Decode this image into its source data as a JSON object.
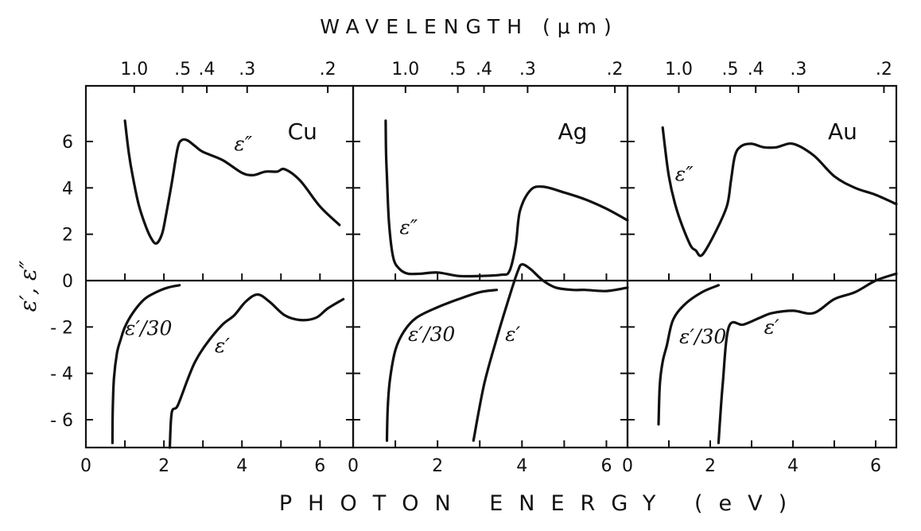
{
  "chart_data": {
    "type": "line",
    "title": "WAVELENGTH (μm)",
    "xlabel": "PHOTON ENERGY (eV)",
    "ylabel": "ε′, ε″",
    "ylim": [
      -7.2,
      8.4
    ],
    "yticks": [
      6,
      4,
      2,
      0,
      -2,
      -4,
      -6
    ],
    "ytick_labels": [
      "6",
      "4",
      "2",
      "0",
      "- 2",
      "- 4",
      "- 6"
    ],
    "grid": false,
    "panels": [
      {
        "name": "Cu",
        "xlim": [
          0,
          6.85
        ],
        "xticks": [
          0,
          2,
          4,
          6
        ],
        "xtick_labels": [
          "0",
          "2",
          "4",
          "6"
        ],
        "wavelength_ticks": [
          1.0,
          0.5,
          0.4,
          0.3,
          0.2
        ],
        "wavelength_labels": [
          "1.0",
          ".5",
          ".4",
          ".3",
          ".2"
        ],
        "series": [
          {
            "name": "ε″",
            "label": "ε″",
            "label_at": [
              3.8,
              5.6
            ],
            "x": [
              1.0,
              1.1,
              1.2,
              1.35,
              1.5,
              1.65,
              1.8,
              1.95,
              2.05,
              2.2,
              2.35,
              2.45,
              2.6,
              2.8,
              3.0,
              3.5,
              4.0,
              4.3,
              4.6,
              4.9,
              5.1,
              5.5,
              6.0,
              6.5
            ],
            "y": [
              6.9,
              5.5,
              4.5,
              3.3,
              2.5,
              1.9,
              1.6,
              2.0,
              2.8,
              4.2,
              5.7,
              6.05,
              6.05,
              5.8,
              5.55,
              5.2,
              4.65,
              4.55,
              4.7,
              4.7,
              4.8,
              4.3,
              3.2,
              2.4
            ]
          },
          {
            "name": "ε′/30",
            "label": "ε′/30",
            "label_at": [
              1.0,
              -2.35
            ],
            "x": [
              0.68,
              0.69,
              0.72,
              0.8,
              0.9,
              1.0,
              1.2,
              1.5,
              1.8,
              2.1,
              2.4
            ],
            "y": [
              -7.0,
              -5.5,
              -4.2,
              -3.1,
              -2.5,
              -2.0,
              -1.4,
              -0.8,
              -0.5,
              -0.3,
              -0.2
            ]
          },
          {
            "name": "ε′",
            "label": "ε′",
            "label_at": [
              3.3,
              -3.1
            ],
            "x": [
              2.15,
              2.2,
              2.35,
              2.6,
              2.8,
              3.1,
              3.5,
              3.8,
              4.1,
              4.4,
              4.7,
              5.1,
              5.5,
              5.9,
              6.2,
              6.6
            ],
            "y": [
              -7.2,
              -5.7,
              -5.4,
              -4.3,
              -3.5,
              -2.7,
              -1.9,
              -1.5,
              -0.9,
              -0.6,
              -0.9,
              -1.5,
              -1.7,
              -1.6,
              -1.2,
              -0.8
            ]
          }
        ]
      },
      {
        "name": "Ag",
        "xlim": [
          0,
          6.5
        ],
        "xticks": [
          0,
          2,
          4,
          6
        ],
        "xtick_labels": [
          "0",
          "2",
          "4",
          "6"
        ],
        "wavelength_ticks": [
          1.0,
          0.5,
          0.4,
          0.3,
          0.2
        ],
        "wavelength_labels": [
          "1.0",
          ".5",
          ".4",
          ".3",
          ".2"
        ],
        "series": [
          {
            "name": "ε″",
            "label": "ε″",
            "label_at": [
              1.1,
              2.0
            ],
            "x": [
              0.77,
              0.78,
              0.8,
              0.85,
              0.95,
              1.1,
              1.3,
              1.6,
              2.0,
              2.5,
              3.0,
              3.5,
              3.7,
              3.85,
              3.95,
              4.2,
              4.5,
              5.0,
              5.5,
              6.0,
              6.5
            ],
            "y": [
              6.9,
              5.5,
              4.5,
              2.5,
              1.0,
              0.5,
              0.3,
              0.3,
              0.35,
              0.2,
              0.2,
              0.25,
              0.4,
              1.5,
              3.0,
              3.9,
              4.05,
              3.8,
              3.5,
              3.1,
              2.6
            ]
          },
          {
            "name": "ε′/30",
            "label": "ε′/30",
            "label_at": [
              1.3,
              -2.6
            ],
            "x": [
              0.8,
              0.82,
              0.87,
              1.0,
              1.2,
              1.5,
              2.0,
              2.5,
              3.0,
              3.4
            ],
            "y": [
              -6.9,
              -5.5,
              -4.3,
              -3.0,
              -2.2,
              -1.6,
              -1.15,
              -0.8,
              -0.5,
              -0.4
            ]
          },
          {
            "name": "ε′",
            "label": "ε′",
            "label_at": [
              3.6,
              -2.6
            ],
            "x": [
              2.85,
              3.1,
              3.4,
              3.7,
              3.9,
              4.0,
              4.2,
              4.5,
              4.8,
              5.2,
              5.5,
              6.0,
              6.5
            ],
            "y": [
              -6.9,
              -4.5,
              -2.5,
              -0.7,
              0.4,
              0.7,
              0.5,
              0.0,
              -0.3,
              -0.4,
              -0.4,
              -0.45,
              -0.3
            ]
          }
        ]
      },
      {
        "name": "Au",
        "xlim": [
          0,
          6.5
        ],
        "xticks": [
          0,
          2,
          4,
          6
        ],
        "xtick_labels": [
          "0",
          "2",
          "4",
          "6"
        ],
        "wavelength_ticks": [
          1.0,
          0.5,
          0.4,
          0.3,
          0.2
        ],
        "wavelength_labels": [
          "1.0",
          ".5",
          ".4",
          ".3",
          ".2"
        ],
        "series": [
          {
            "name": "ε″",
            "label": "ε″",
            "label_at": [
              1.15,
              4.3
            ],
            "x": [
              0.85,
              1.0,
              1.2,
              1.5,
              1.65,
              1.8,
              2.1,
              2.4,
              2.5,
              2.6,
              2.75,
              3.0,
              3.3,
              3.6,
              4.0,
              4.5,
              5.0,
              5.5,
              6.0,
              6.5
            ],
            "y": [
              6.6,
              4.5,
              3.0,
              1.6,
              1.3,
              1.1,
              2.0,
              3.2,
              4.3,
              5.4,
              5.8,
              5.9,
              5.75,
              5.75,
              5.9,
              5.4,
              4.5,
              4.0,
              3.7,
              3.3
            ]
          },
          {
            "name": "ε′/30",
            "label": "ε′/30",
            "label_at": [
              1.25,
              -2.7
            ],
            "x": [
              0.75,
              0.78,
              0.85,
              0.95,
              1.1,
              1.4,
              1.8,
              2.2
            ],
            "y": [
              -6.2,
              -4.5,
              -3.5,
              -2.8,
              -1.7,
              -1.0,
              -0.5,
              -0.2
            ]
          },
          {
            "name": "ε′",
            "label": "ε′",
            "label_at": [
              3.3,
              -2.3
            ],
            "x": [
              2.2,
              2.3,
              2.45,
              2.8,
              3.2,
              3.5,
              4.0,
              4.5,
              5.0,
              5.5,
              6.0,
              6.5
            ],
            "y": [
              -7.0,
              -4.5,
              -2.0,
              -1.9,
              -1.6,
              -1.4,
              -1.3,
              -1.4,
              -0.8,
              -0.5,
              0.0,
              0.3
            ]
          }
        ]
      }
    ]
  }
}
